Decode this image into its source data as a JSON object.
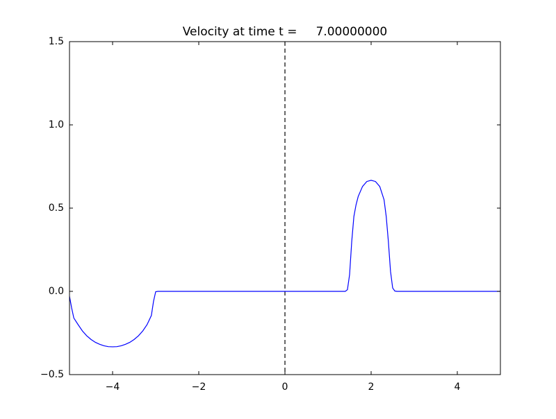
{
  "chart_data": {
    "type": "line",
    "title": "Velocity at time t =     7.00000000",
    "x": [
      -5,
      -4.95,
      -4.9,
      -4.8,
      -4.7,
      -4.6,
      -4.5,
      -4.4,
      -4.3,
      -4.2,
      -4.1,
      -4,
      -3.9,
      -3.8,
      -3.7,
      -3.6,
      -3.5,
      -3.4,
      -3.3,
      -3.2,
      -3.1,
      -3.05,
      -3,
      -2.95,
      1.4,
      1.45,
      1.5,
      1.55,
      1.6,
      1.65,
      1.7,
      1.8,
      1.9,
      2,
      2.1,
      2.2,
      2.3,
      2.35,
      2.4,
      2.45,
      2.5,
      2.55,
      2.6,
      5
    ],
    "series": [
      {
        "color": "#0000ff",
        "values": [
          -0.03,
          -0.1,
          -0.16,
          -0.2,
          -0.238,
          -0.267,
          -0.289,
          -0.306,
          -0.318,
          -0.327,
          -0.332,
          -0.333,
          -0.332,
          -0.327,
          -0.318,
          -0.306,
          -0.289,
          -0.267,
          -0.238,
          -0.2,
          -0.145,
          -0.06,
          -0.002,
          0,
          0,
          0.01,
          0.1,
          0.3,
          0.45,
          0.52,
          0.57,
          0.63,
          0.66,
          0.667,
          0.66,
          0.63,
          0.55,
          0.45,
          0.3,
          0.12,
          0.02,
          0.002,
          0,
          0
        ]
      }
    ],
    "xlim": [
      -5,
      5
    ],
    "xticks": [
      {
        "value": -4,
        "label": "−4"
      },
      {
        "value": -2,
        "label": "−2"
      },
      0,
      2,
      4
    ],
    "ylim": [
      -0.5,
      1.5
    ],
    "yticks": [
      {
        "value": -0.5,
        "label": "−0.5"
      },
      {
        "value": 0,
        "label": "0.0"
      },
      0.5,
      {
        "value": 1,
        "label": "1.0"
      },
      1.5
    ],
    "vline": 0,
    "grid": false
  }
}
